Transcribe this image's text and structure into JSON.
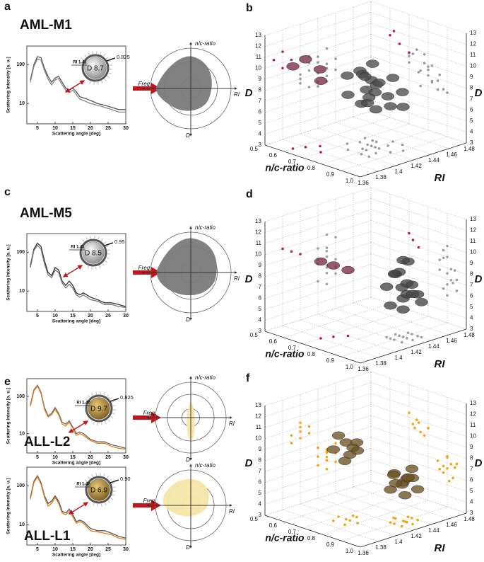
{
  "line_axes": {
    "xlabel": "Scattering angle [deg]",
    "ylabel": "Scattering Intensity [a. u.]",
    "x": [
      3,
      4,
      5,
      6,
      7,
      8,
      9,
      10,
      11,
      12,
      13,
      14,
      15,
      16,
      17,
      18,
      20,
      22,
      24,
      26,
      28,
      30
    ],
    "xlim": [
      2,
      30
    ],
    "xticks": [
      5,
      10,
      15,
      20,
      25,
      30
    ],
    "ylim": [
      3,
      300
    ],
    "yticks": [
      10,
      100
    ],
    "log_y": true
  },
  "polar_labels": {
    "top": "n/c-ratio",
    "left": "Freq.",
    "right": "RI",
    "bottom": "D"
  },
  "line_panels": [
    {
      "letter": "a",
      "title": "AML-M1",
      "dial": {
        "d": "D 8.7",
        "ri": "RI 1.41",
        "ratio": "0.825"
      },
      "series": [
        {
          "color": "#555555",
          "values": [
            40,
            100,
            160,
            150,
            80,
            50,
            35,
            45,
            50,
            35,
            25,
            22,
            25,
            20,
            15,
            14,
            12,
            10,
            9,
            8,
            7,
            7
          ]
        },
        {
          "color": "#888888",
          "values": [
            35,
            90,
            140,
            130,
            70,
            42,
            30,
            40,
            44,
            30,
            22,
            19,
            22,
            17,
            13,
            12,
            10,
            9,
            8,
            7,
            6,
            6
          ]
        }
      ]
    },
    {
      "letter": "c",
      "title": "AML-M5",
      "dial": {
        "d": "D 8.5",
        "ri": "RI 1.41",
        "ratio": "0.95"
      },
      "series": [
        {
          "color": "#333333",
          "values": [
            45,
            120,
            170,
            140,
            60,
            30,
            25,
            40,
            35,
            18,
            14,
            18,
            14,
            9,
            8,
            9,
            7,
            6,
            5,
            5,
            4.5,
            4
          ]
        },
        {
          "color": "#777777",
          "values": [
            40,
            110,
            150,
            120,
            50,
            26,
            22,
            35,
            30,
            16,
            12,
            15,
            12,
            8,
            7,
            8,
            6,
            5.5,
            4.5,
            4.5,
            4,
            3.8
          ]
        }
      ]
    },
    {
      "letter": "e",
      "title": "ALL-L2",
      "dial": {
        "d": "D 9.7",
        "ri": "RI 1.40",
        "ratio": "0.825"
      },
      "series": [
        {
          "color": "#666666",
          "values": [
            60,
            150,
            200,
            130,
            50,
            30,
            35,
            50,
            35,
            20,
            18,
            22,
            15,
            10,
            11,
            10,
            7,
            6,
            6,
            5,
            4.5,
            4
          ]
        },
        {
          "color": "#e07b1a",
          "values": [
            55,
            140,
            190,
            120,
            45,
            28,
            32,
            45,
            32,
            18,
            16,
            20,
            14,
            9,
            10,
            9,
            6.5,
            5.5,
            5.5,
            4.5,
            4,
            3.8
          ]
        }
      ]
    },
    {
      "title": "ALL-L1",
      "dial": {
        "d": "D 6.9",
        "ri": "RI 1.42",
        "ratio": "0.90"
      },
      "series": [
        {
          "color": "#555555",
          "values": [
            50,
            130,
            180,
            120,
            55,
            35,
            40,
            55,
            40,
            22,
            20,
            25,
            18,
            12,
            13,
            12,
            8,
            7,
            7,
            6,
            5,
            4.5
          ]
        },
        {
          "color": "#e07b1a",
          "values": [
            45,
            120,
            170,
            110,
            50,
            30,
            35,
            50,
            35,
            20,
            18,
            22,
            16,
            11,
            12,
            11,
            7,
            6.5,
            6,
            5.5,
            4.5,
            4.2
          ]
        }
      ]
    }
  ],
  "scatter_axes": {
    "xlabel": "RI",
    "ylabel": "n/c-ratio",
    "zlabel": "D",
    "xlim": [
      1.36,
      1.48
    ],
    "xticks": [
      1.36,
      1.38,
      1.4,
      1.42,
      1.44,
      1.46,
      1.48
    ],
    "ylim": [
      0.5,
      1.0
    ],
    "yticks": [
      0.5,
      0.6,
      0.7,
      0.8,
      0.9,
      {
        "value": 1,
        "label": "1.0"
      }
    ],
    "zlim": [
      3,
      13
    ],
    "zticks": [
      3,
      4,
      5,
      6,
      7,
      8,
      9,
      10,
      11,
      12,
      13
    ]
  },
  "scatter_panels": [
    {
      "letter": "b",
      "series": [
        {
          "color": "#4a4a4a",
          "proj_color": "#9a9a9a",
          "x": [
            1.4,
            1.41,
            1.42,
            1.43,
            1.42,
            1.41,
            1.43,
            1.44,
            1.4,
            1.42,
            1.41,
            1.43,
            1.42,
            1.44,
            1.41,
            1.42,
            1.43,
            1.4,
            1.42,
            1.43
          ],
          "y": [
            0.75,
            0.8,
            0.78,
            0.82,
            0.72,
            0.85,
            0.76,
            0.8,
            0.82,
            0.88,
            0.7,
            0.74,
            0.8,
            0.85,
            0.78,
            0.76,
            0.9,
            0.86,
            0.82,
            0.7
          ],
          "z": [
            8,
            8.5,
            9,
            7.5,
            9.5,
            7,
            8.2,
            8.8,
            7.6,
            7.2,
            9.2,
            10,
            8,
            7.8,
            9.8,
            6.8,
            7,
            8.4,
            9,
            8.6
          ]
        },
        {
          "color": "#7a2a45",
          "proj_color": "#b0204a",
          "x": [
            1.37,
            1.38,
            1.39,
            1.38
          ],
          "y": [
            0.6,
            0.62,
            0.65,
            0.7
          ],
          "z": [
            10.5,
            11,
            10,
            9.5
          ]
        }
      ]
    },
    {
      "letter": "d",
      "series": [
        {
          "color": "#444444",
          "proj_color": "#a0a0a0",
          "x": [
            1.42,
            1.43,
            1.43,
            1.44,
            1.42,
            1.43,
            1.44,
            1.43,
            1.42,
            1.44,
            1.43,
            1.43,
            1.42,
            1.44,
            1.43,
            1.43
          ],
          "y": [
            0.88,
            0.9,
            0.92,
            0.9,
            0.94,
            0.86,
            0.93,
            0.95,
            0.9,
            0.88,
            0.9,
            0.92,
            0.86,
            0.95,
            0.88,
            0.9
          ],
          "z": [
            6,
            6.5,
            7,
            7.5,
            8,
            8.5,
            6.8,
            7.2,
            9,
            9.5,
            5.5,
            8,
            7.6,
            6.2,
            8.8,
            10
          ]
        },
        {
          "color": "#7a2a45",
          "proj_color": "#b0204a",
          "x": [
            1.38,
            1.39,
            1.4
          ],
          "y": [
            0.7,
            0.72,
            0.75
          ],
          "z": [
            10,
            9.5,
            9
          ]
        }
      ]
    },
    {
      "letter": "f",
      "series": [
        {
          "color": "#6b5322",
          "proj_color": "#f2a413",
          "x": [
            1.39,
            1.4,
            1.4,
            1.41,
            1.39,
            1.4,
            1.41,
            1.4,
            1.42,
            1.43,
            1.43,
            1.44,
            1.42,
            1.43,
            1.44,
            1.43,
            1.42,
            1.44,
            1.43,
            1.43
          ],
          "y": [
            0.72,
            0.74,
            0.76,
            0.75,
            0.78,
            0.7,
            0.73,
            0.8,
            0.88,
            0.9,
            0.92,
            0.9,
            0.94,
            0.86,
            0.93,
            0.95,
            0.9,
            0.88,
            0.91,
            0.85
          ],
          "z": [
            9.5,
            10,
            9,
            9.8,
            8.8,
            10.4,
            9.2,
            9.6,
            6,
            6.5,
            7,
            7.5,
            6.8,
            6.2,
            5.8,
            7.2,
            7.6,
            6.6,
            5.4,
            6.9
          ]
        }
      ]
    }
  ]
}
